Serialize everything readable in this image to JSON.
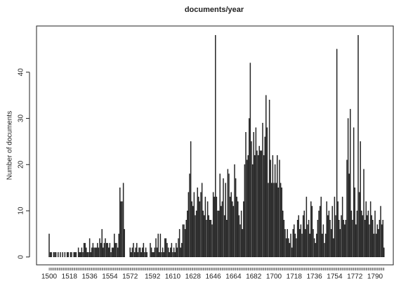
{
  "chart_data": {
    "type": "bar",
    "title": "documents/year",
    "ylabel": "Number of documents",
    "categories": [
      "1500",
      null,
      null,
      null,
      null,
      null,
      null,
      null,
      null,
      null,
      null,
      null,
      null,
      null,
      null,
      null,
      null,
      null,
      "1518",
      null,
      null,
      null,
      null,
      null,
      null,
      null,
      null,
      null,
      null,
      null,
      null,
      null,
      null,
      null,
      null,
      null,
      "1536",
      null,
      null,
      null,
      null,
      null,
      null,
      null,
      null,
      null,
      null,
      null,
      null,
      null,
      null,
      null,
      null,
      null,
      "1554",
      null,
      null,
      null,
      null,
      null,
      null,
      null,
      null,
      null,
      null,
      null,
      null,
      null,
      null,
      null,
      null,
      null,
      "1572",
      null,
      null,
      null,
      null,
      null,
      null,
      null,
      null,
      null,
      null,
      null,
      null,
      null,
      null,
      null,
      null,
      null,
      null,
      null,
      "1592",
      null,
      null,
      null,
      null,
      null,
      null,
      null,
      null,
      null,
      null,
      null,
      null,
      null,
      null,
      null,
      null,
      null,
      "1610",
      null,
      null,
      null,
      null,
      null,
      null,
      null,
      null,
      null,
      null,
      null,
      null,
      null,
      null,
      null,
      null,
      null,
      "1628",
      null,
      null,
      null,
      null,
      null,
      null,
      null,
      null,
      null,
      null,
      null,
      null,
      null,
      null,
      null,
      null,
      null,
      "1646",
      null,
      null,
      null,
      null,
      null,
      null,
      null,
      null,
      null,
      null,
      null,
      null,
      null,
      null,
      null,
      null,
      null,
      "1664",
      null,
      null,
      null,
      null,
      null,
      null,
      null,
      null,
      null,
      null,
      null,
      null,
      null,
      null,
      null,
      null,
      null,
      "1682",
      null,
      null,
      null,
      null,
      null,
      null,
      null,
      null,
      null,
      null,
      null,
      null,
      null,
      null,
      null,
      null,
      null,
      "1700",
      null,
      null,
      null,
      null,
      null,
      null,
      null,
      null,
      null,
      null,
      null,
      null,
      null,
      null,
      null,
      null,
      null,
      "1718",
      null,
      null,
      null,
      null,
      null,
      null,
      null,
      null,
      null,
      null,
      null,
      null,
      null,
      null,
      null,
      null,
      null,
      "1736",
      null,
      null,
      null,
      null,
      null,
      null,
      null,
      null,
      null,
      null,
      null,
      null,
      null,
      null,
      null,
      null,
      null,
      "1754",
      null,
      null,
      null,
      null,
      null,
      null,
      null,
      null,
      null,
      null,
      null,
      null,
      null,
      null,
      null,
      null,
      null,
      "1772",
      null,
      null,
      null,
      null,
      null,
      null,
      null,
      null,
      null,
      null,
      null,
      null,
      null,
      null,
      null,
      null,
      null,
      "1790",
      null,
      null,
      null,
      null,
      null,
      null,
      null,
      null
    ],
    "values": [
      5,
      1,
      1,
      0,
      1,
      1,
      1,
      0,
      1,
      0,
      1,
      0,
      1,
      0,
      1,
      0,
      1,
      1,
      0,
      1,
      1,
      0,
      1,
      1,
      1,
      0,
      2,
      1,
      1,
      2,
      1,
      3,
      3,
      2,
      1,
      1,
      4,
      1,
      2,
      3,
      2,
      2,
      2,
      3,
      2,
      4,
      3,
      6,
      2,
      3,
      4,
      3,
      3,
      2,
      3,
      1,
      2,
      2,
      5,
      3,
      3,
      2,
      5,
      15,
      12,
      12,
      16,
      6,
      0,
      0,
      0,
      0,
      2,
      1,
      2,
      3,
      1,
      2,
      3,
      1,
      2,
      2,
      1,
      2,
      3,
      1,
      2,
      1,
      0,
      0,
      3,
      2,
      1,
      1,
      2,
      4,
      2,
      5,
      1,
      5,
      1,
      2,
      1,
      4,
      4,
      3,
      2,
      1,
      2,
      3,
      1,
      2,
      1,
      3,
      2,
      4,
      6,
      2,
      3,
      7,
      7,
      6,
      8,
      10,
      14,
      18,
      25,
      12,
      11,
      14,
      9,
      10,
      15,
      13,
      12,
      14,
      16,
      10,
      9,
      13,
      8,
      12,
      9,
      8,
      8,
      7,
      14,
      13,
      48,
      13,
      10,
      10,
      18,
      11,
      12,
      17,
      9,
      16,
      8,
      19,
      18,
      13,
      14,
      12,
      11,
      20,
      17,
      13,
      12,
      9,
      7,
      10,
      6,
      12,
      20,
      27,
      21,
      22,
      30,
      42,
      25,
      20,
      27,
      22,
      28,
      23,
      22,
      24,
      23,
      23,
      29,
      22,
      26,
      35,
      28,
      16,
      34,
      21,
      16,
      22,
      16,
      20,
      16,
      22,
      15,
      21,
      16,
      15,
      10,
      8,
      6,
      4,
      6,
      4,
      3,
      5,
      2,
      6,
      7,
      5,
      4,
      8,
      9,
      6,
      7,
      5,
      9,
      10,
      6,
      13,
      7,
      8,
      5,
      12,
      11,
      6,
      4,
      3,
      5,
      8,
      10,
      11,
      13,
      5,
      7,
      3,
      5,
      12,
      9,
      10,
      8,
      6,
      11,
      4,
      13,
      9,
      45,
      12,
      8,
      6,
      9,
      13,
      8,
      7,
      8,
      21,
      30,
      18,
      32,
      10,
      8,
      28,
      15,
      7,
      10,
      48,
      14,
      25,
      10,
      9,
      19,
      8,
      12,
      9,
      10,
      7,
      12,
      9,
      8,
      5,
      10,
      5,
      7,
      6,
      8,
      11,
      7,
      8,
      2
    ],
    "color": "#333333",
    "ylim": [
      -1.7,
      50
    ],
    "yticks": [
      0,
      10,
      20,
      30,
      40
    ]
  }
}
